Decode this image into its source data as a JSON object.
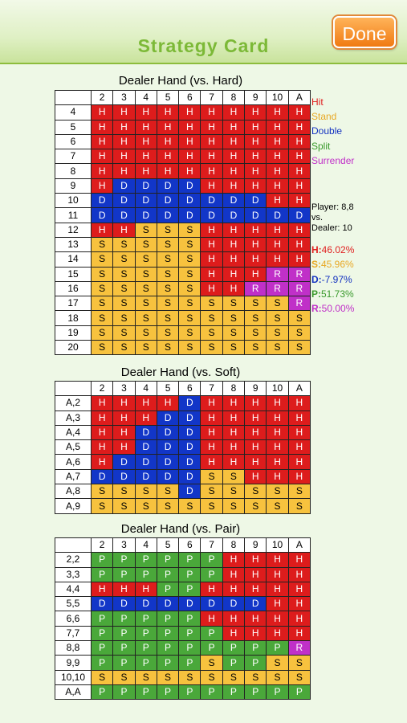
{
  "header": {
    "title": "Strategy Card",
    "done_label": "Done"
  },
  "columns": [
    "2",
    "3",
    "4",
    "5",
    "6",
    "7",
    "8",
    "9",
    "10",
    "A"
  ],
  "hard": {
    "title": "Dealer Hand (vs. Hard)",
    "rows": [
      {
        "label": "4",
        "cells": [
          "H",
          "H",
          "H",
          "H",
          "H",
          "H",
          "H",
          "H",
          "H",
          "H"
        ]
      },
      {
        "label": "5",
        "cells": [
          "H",
          "H",
          "H",
          "H",
          "H",
          "H",
          "H",
          "H",
          "H",
          "H"
        ]
      },
      {
        "label": "6",
        "cells": [
          "H",
          "H",
          "H",
          "H",
          "H",
          "H",
          "H",
          "H",
          "H",
          "H"
        ]
      },
      {
        "label": "7",
        "cells": [
          "H",
          "H",
          "H",
          "H",
          "H",
          "H",
          "H",
          "H",
          "H",
          "H"
        ]
      },
      {
        "label": "8",
        "cells": [
          "H",
          "H",
          "H",
          "H",
          "H",
          "H",
          "H",
          "H",
          "H",
          "H"
        ]
      },
      {
        "label": "9",
        "cells": [
          "H",
          "D",
          "D",
          "D",
          "D",
          "H",
          "H",
          "H",
          "H",
          "H"
        ]
      },
      {
        "label": "10",
        "cells": [
          "D",
          "D",
          "D",
          "D",
          "D",
          "D",
          "D",
          "D",
          "H",
          "H"
        ]
      },
      {
        "label": "11",
        "cells": [
          "D",
          "D",
          "D",
          "D",
          "D",
          "D",
          "D",
          "D",
          "D",
          "D"
        ]
      },
      {
        "label": "12",
        "cells": [
          "H",
          "H",
          "S",
          "S",
          "S",
          "H",
          "H",
          "H",
          "H",
          "H"
        ]
      },
      {
        "label": "13",
        "cells": [
          "S",
          "S",
          "S",
          "S",
          "S",
          "H",
          "H",
          "H",
          "H",
          "H"
        ]
      },
      {
        "label": "14",
        "cells": [
          "S",
          "S",
          "S",
          "S",
          "S",
          "H",
          "H",
          "H",
          "H",
          "H"
        ]
      },
      {
        "label": "15",
        "cells": [
          "S",
          "S",
          "S",
          "S",
          "S",
          "H",
          "H",
          "H",
          "R",
          "R"
        ]
      },
      {
        "label": "16",
        "cells": [
          "S",
          "S",
          "S",
          "S",
          "S",
          "H",
          "H",
          "R",
          "R",
          "R"
        ]
      },
      {
        "label": "17",
        "cells": [
          "S",
          "S",
          "S",
          "S",
          "S",
          "S",
          "S",
          "S",
          "S",
          "R"
        ]
      },
      {
        "label": "18",
        "cells": [
          "S",
          "S",
          "S",
          "S",
          "S",
          "S",
          "S",
          "S",
          "S",
          "S"
        ]
      },
      {
        "label": "19",
        "cells": [
          "S",
          "S",
          "S",
          "S",
          "S",
          "S",
          "S",
          "S",
          "S",
          "S"
        ]
      },
      {
        "label": "20",
        "cells": [
          "S",
          "S",
          "S",
          "S",
          "S",
          "S",
          "S",
          "S",
          "S",
          "S"
        ]
      }
    ]
  },
  "soft": {
    "title": "Dealer Hand (vs. Soft)",
    "rows": [
      {
        "label": "A,2",
        "cells": [
          "H",
          "H",
          "H",
          "H",
          "D",
          "H",
          "H",
          "H",
          "H",
          "H"
        ]
      },
      {
        "label": "A,3",
        "cells": [
          "H",
          "H",
          "H",
          "D",
          "D",
          "H",
          "H",
          "H",
          "H",
          "H"
        ]
      },
      {
        "label": "A,4",
        "cells": [
          "H",
          "H",
          "D",
          "D",
          "D",
          "H",
          "H",
          "H",
          "H",
          "H"
        ]
      },
      {
        "label": "A,5",
        "cells": [
          "H",
          "H",
          "D",
          "D",
          "D",
          "H",
          "H",
          "H",
          "H",
          "H"
        ]
      },
      {
        "label": "A,6",
        "cells": [
          "H",
          "D",
          "D",
          "D",
          "D",
          "H",
          "H",
          "H",
          "H",
          "H"
        ]
      },
      {
        "label": "A,7",
        "cells": [
          "D",
          "D",
          "D",
          "D",
          "D",
          "S",
          "S",
          "H",
          "H",
          "H"
        ]
      },
      {
        "label": "A,8",
        "cells": [
          "S",
          "S",
          "S",
          "S",
          "D",
          "S",
          "S",
          "S",
          "S",
          "S"
        ]
      },
      {
        "label": "A,9",
        "cells": [
          "S",
          "S",
          "S",
          "S",
          "S",
          "S",
          "S",
          "S",
          "S",
          "S"
        ]
      }
    ]
  },
  "pair": {
    "title": "Dealer Hand (vs. Pair)",
    "rows": [
      {
        "label": "2,2",
        "cells": [
          "P",
          "P",
          "P",
          "P",
          "P",
          "P",
          "H",
          "H",
          "H",
          "H"
        ]
      },
      {
        "label": "3,3",
        "cells": [
          "P",
          "P",
          "P",
          "P",
          "P",
          "P",
          "H",
          "H",
          "H",
          "H"
        ]
      },
      {
        "label": "4,4",
        "cells": [
          "H",
          "H",
          "H",
          "P",
          "P",
          "H",
          "H",
          "H",
          "H",
          "H"
        ]
      },
      {
        "label": "5,5",
        "cells": [
          "D",
          "D",
          "D",
          "D",
          "D",
          "D",
          "D",
          "D",
          "H",
          "H"
        ]
      },
      {
        "label": "6,6",
        "cells": [
          "P",
          "P",
          "P",
          "P",
          "P",
          "H",
          "H",
          "H",
          "H",
          "H"
        ]
      },
      {
        "label": "7,7",
        "cells": [
          "P",
          "P",
          "P",
          "P",
          "P",
          "P",
          "H",
          "H",
          "H",
          "H"
        ]
      },
      {
        "label": "8,8",
        "cells": [
          "P",
          "P",
          "P",
          "P",
          "P",
          "P",
          "P",
          "P",
          "P",
          "R"
        ]
      },
      {
        "label": "9,9",
        "cells": [
          "P",
          "P",
          "P",
          "P",
          "P",
          "S",
          "P",
          "P",
          "S",
          "S"
        ]
      },
      {
        "label": "10,10",
        "cells": [
          "S",
          "S",
          "S",
          "S",
          "S",
          "S",
          "S",
          "S",
          "S",
          "S"
        ]
      },
      {
        "label": "A,A",
        "cells": [
          "P",
          "P",
          "P",
          "P",
          "P",
          "P",
          "P",
          "P",
          "P",
          "P"
        ]
      }
    ]
  },
  "legend": [
    {
      "key": "H",
      "label": "Hit",
      "color": "#e02020"
    },
    {
      "key": "S",
      "label": "Stand",
      "color": "#e8a824"
    },
    {
      "key": "D",
      "label": "Double",
      "color": "#1432c0"
    },
    {
      "key": "P",
      "label": "Split",
      "color": "#3a9a2c"
    },
    {
      "key": "R",
      "label": "Surrender",
      "color": "#c030c8"
    }
  ],
  "situation": {
    "player": "Player: 8,8",
    "vs": "vs.",
    "dealer": "Dealer: 10"
  },
  "stats": [
    {
      "key": "H:",
      "value": "46.02%",
      "color": "#e02020"
    },
    {
      "key": "S:",
      "value": "45.96%",
      "color": "#e8a824"
    },
    {
      "key": "D:",
      "value": "-7.97%",
      "color": "#1432c0"
    },
    {
      "key": "P:",
      "value": "51.73%",
      "color": "#3a9a2c"
    },
    {
      "key": "R:",
      "value": "50.00%",
      "color": "#c030c8"
    }
  ]
}
